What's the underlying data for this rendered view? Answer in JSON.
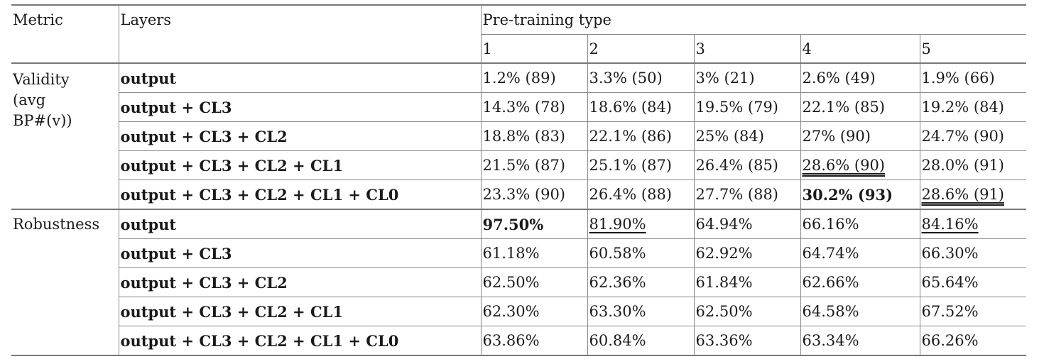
{
  "header": {
    "metric": "Metric",
    "layers": "Layers",
    "pretraining": "Pre-training type",
    "types": [
      "1",
      "2",
      "3",
      "4",
      "5"
    ]
  },
  "validity": {
    "label_lines": [
      "Validity",
      "(avg",
      "BP#(v))"
    ],
    "rows": [
      {
        "layer": "output",
        "values": [
          "1.2% (89)",
          "3.3% (50)",
          "3% (21)",
          "2.6% (49)",
          "1.9% (66)"
        ]
      },
      {
        "layer": "output + CL3",
        "values": [
          "14.3% (78)",
          "18.6% (84)",
          "19.5% (79)",
          "22.1% (85)",
          "19.2% (84)"
        ]
      },
      {
        "layer": "output + CL3 + CL2",
        "values": [
          "18.8% (83)",
          "22.1% (86)",
          "25% (84)",
          "27% (90)",
          "24.7% (90)"
        ]
      },
      {
        "layer": "output + CL3 + CL2 + CL1",
        "values": [
          "21.5% (87)",
          "25.1% (87)",
          "26.4% (85)",
          "28.6% (90)",
          "28.0% (91)"
        ]
      },
      {
        "layer": "output + CL3 + CL2 + CL1 + CL0",
        "values": [
          "23.3% (90)",
          "26.4% (88)",
          "27.7% (88)",
          "30.2% (93)",
          "28.6% (91)"
        ]
      }
    ]
  },
  "robustness": {
    "label": "Robustness",
    "rows": [
      {
        "layer": "output",
        "values": [
          "97.50%",
          "81.90%",
          "64.94%",
          "66.16%",
          "84.16%"
        ]
      },
      {
        "layer": "output + CL3",
        "values": [
          "61.18%",
          "60.58%",
          "62.92%",
          "64.74%",
          "66.30%"
        ]
      },
      {
        "layer": "output + CL3 + CL2",
        "values": [
          "62.50%",
          "62.36%",
          "61.84%",
          "62.66%",
          "65.64%"
        ]
      },
      {
        "layer": "output + CL3 + CL2 + CL1",
        "values": [
          "62.30%",
          "63.30%",
          "62.50%",
          "64.58%",
          "67.52%"
        ]
      },
      {
        "layer": "output + CL3 + CL2 + CL1 + CL0",
        "values": [
          "63.86%",
          "60.84%",
          "63.36%",
          "63.34%",
          "66.26%"
        ]
      }
    ]
  }
}
